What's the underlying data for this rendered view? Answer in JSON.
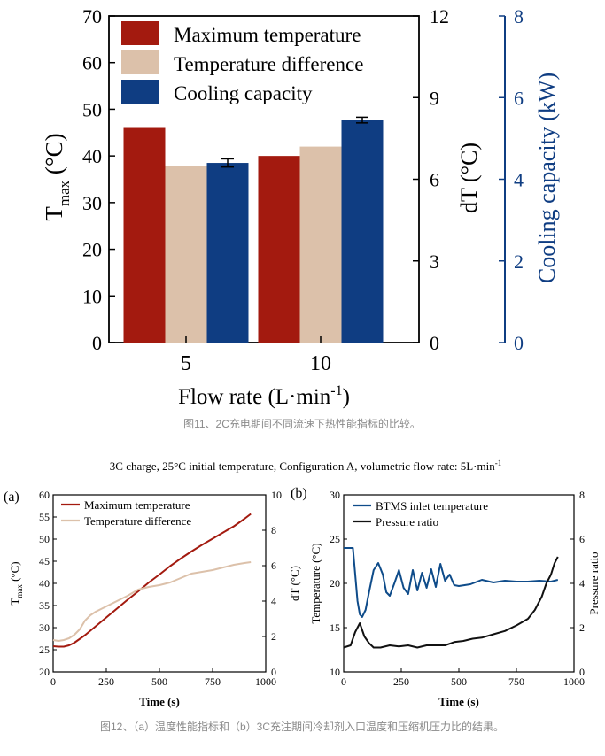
{
  "colors": {
    "max_temp": "#a31a0f",
    "temp_diff": "#dcc1aa",
    "cooling": "#0f3d82",
    "axis_cool": "#0f3d82",
    "inlet": "#0f4c8a",
    "pressure": "#111111",
    "caption": "#8a8a8a"
  },
  "captions": {
    "fig11": "图11、2C充电期间不同流速下热性能指标的比较。",
    "fig12": "图12、（a）温度性能指标和（b）3C充注期间冷却剂入口温度和压缩机压力比的结果。"
  },
  "chart_data": [
    {
      "type": "bar",
      "categories": [
        "5",
        "10"
      ],
      "xlabel": "Flow rate (L·min⁻¹)",
      "ylabel_left": "T_max (°C)",
      "ylabel_right1": "dT (°C)",
      "ylabel_right2": "Cooling capacity (kW)",
      "ylim_left": [
        0,
        70
      ],
      "ylim_right1": [
        0,
        12
      ],
      "ylim_right2": [
        0,
        8
      ],
      "yticks_left": [
        "0",
        "10",
        "20",
        "30",
        "40",
        "50",
        "60",
        "70"
      ],
      "yticks_right1": [
        "0",
        "3",
        "6",
        "9",
        "12"
      ],
      "yticks_right2": [
        "0",
        "2",
        "4",
        "6",
        "8"
      ],
      "legend_position": "top",
      "series": [
        {
          "name": "Maximum temperature",
          "axis": "left",
          "values": [
            46,
            40
          ]
        },
        {
          "name": "Temperature difference",
          "axis": "right1",
          "values": [
            6.5,
            7.2
          ]
        },
        {
          "name": "Cooling capacity",
          "axis": "right2",
          "values": [
            4.4,
            5.45
          ],
          "error": [
            0.1,
            0.07
          ]
        }
      ]
    },
    {
      "type": "line",
      "panel_label": "(a)",
      "suptitle": "3C charge, 25°C initial temperature, Configuration A, volumetric flow rate: 5L·min⁻¹",
      "xlabel": "Time (s)",
      "ylabel_left": "T_max (°C)",
      "ylabel_right": "dT (°C)",
      "xlim": [
        0,
        1000
      ],
      "xticks": [
        "0",
        "250",
        "500",
        "750",
        "1000"
      ],
      "ylim_left": [
        20,
        60
      ],
      "yticks_left": [
        "20",
        "25",
        "30",
        "35",
        "40",
        "45",
        "50",
        "55",
        "60"
      ],
      "ylim_right": [
        0,
        10
      ],
      "yticks_right": [
        "0",
        "2",
        "4",
        "6",
        "8",
        "10"
      ],
      "legend_position": "top-left",
      "series": [
        {
          "name": "Maximum temperature",
          "axis": "left",
          "x": [
            0,
            25,
            50,
            75,
            100,
            150,
            200,
            250,
            300,
            350,
            400,
            450,
            500,
            550,
            600,
            650,
            700,
            750,
            800,
            850,
            900,
            930
          ],
          "y": [
            25.8,
            25.7,
            25.7,
            26.0,
            26.6,
            28.3,
            30.3,
            32.3,
            34.3,
            36.3,
            38.2,
            40.2,
            42.0,
            43.9,
            45.6,
            47.2,
            48.7,
            50.1,
            51.5,
            52.9,
            54.6,
            55.7
          ]
        },
        {
          "name": "Temperature difference",
          "axis": "right",
          "x": [
            0,
            25,
            50,
            75,
            100,
            125,
            150,
            175,
            200,
            250,
            300,
            350,
            400,
            450,
            500,
            550,
            600,
            650,
            700,
            750,
            800,
            850,
            900,
            930
          ],
          "y": [
            1.8,
            1.75,
            1.8,
            1.9,
            2.1,
            2.4,
            2.9,
            3.2,
            3.4,
            3.7,
            4.0,
            4.3,
            4.65,
            4.8,
            4.9,
            5.05,
            5.3,
            5.55,
            5.65,
            5.75,
            5.9,
            6.05,
            6.15,
            6.2
          ]
        }
      ]
    },
    {
      "type": "line",
      "panel_label": "(b)",
      "xlabel": "Time (s)",
      "ylabel_left": "Temperature (°C)",
      "ylabel_right": "Pressure ratio",
      "xlim": [
        0,
        1000
      ],
      "xticks": [
        "0",
        "250",
        "500",
        "750",
        "1000"
      ],
      "ylim_left": [
        10,
        30
      ],
      "yticks_left": [
        "10",
        "15",
        "20",
        "25",
        "30"
      ],
      "ylim_right": [
        0,
        8
      ],
      "yticks_right": [
        "0",
        "2",
        "4",
        "6",
        "8"
      ],
      "legend_position": "top-left",
      "series": [
        {
          "name": "BTMS inlet temperature",
          "axis": "left",
          "x": [
            0,
            20,
            40,
            50,
            60,
            70,
            80,
            95,
            110,
            130,
            150,
            170,
            185,
            200,
            220,
            240,
            260,
            280,
            300,
            320,
            340,
            360,
            380,
            400,
            420,
            440,
            460,
            480,
            500,
            550,
            600,
            650,
            700,
            750,
            800,
            850,
            900,
            930
          ],
          "y": [
            24.0,
            24.0,
            24.0,
            21.0,
            18.0,
            16.5,
            16.2,
            17.0,
            19.0,
            21.5,
            22.3,
            21.0,
            19.0,
            18.6,
            20.0,
            21.5,
            19.5,
            18.8,
            21.5,
            19.2,
            21.2,
            19.5,
            21.6,
            19.6,
            22.2,
            20.3,
            21.0,
            19.8,
            19.7,
            19.9,
            20.4,
            20.1,
            20.3,
            20.2,
            20.2,
            20.3,
            20.2,
            20.4
          ]
        },
        {
          "name": "Pressure ratio",
          "axis": "right",
          "x": [
            0,
            30,
            50,
            70,
            90,
            110,
            130,
            160,
            200,
            240,
            280,
            320,
            360,
            400,
            440,
            480,
            520,
            560,
            600,
            650,
            700,
            750,
            800,
            830,
            860,
            880,
            900,
            915,
            930
          ],
          "y": [
            1.1,
            1.2,
            1.8,
            2.2,
            1.6,
            1.3,
            1.1,
            1.1,
            1.2,
            1.15,
            1.2,
            1.1,
            1.2,
            1.2,
            1.2,
            1.35,
            1.4,
            1.5,
            1.55,
            1.7,
            1.85,
            2.1,
            2.4,
            2.8,
            3.4,
            4.0,
            4.4,
            4.9,
            5.2
          ]
        }
      ]
    }
  ]
}
